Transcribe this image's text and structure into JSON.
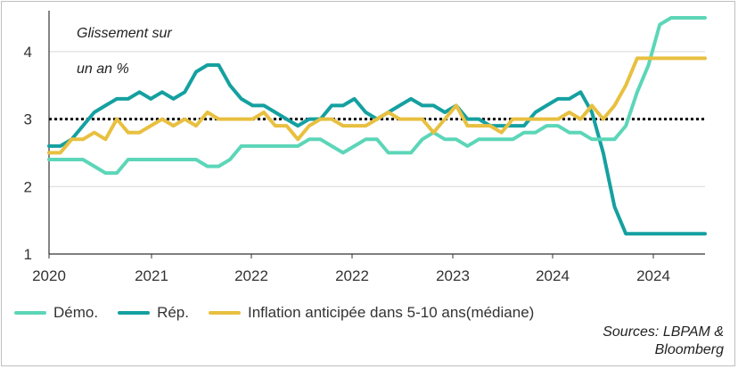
{
  "chart_data": {
    "type": "line",
    "ylabel": "Glissement sur un an %",
    "x_ticks": [
      "2020",
      "2021",
      "2022",
      "2022",
      "2023",
      "2024",
      "2024"
    ],
    "y_ticks": [
      "1",
      "2",
      "3",
      "4"
    ],
    "ylim": [
      1,
      4.5
    ],
    "xlim": [
      0,
      58
    ],
    "grid": "horizontal",
    "legend_position": "bottom",
    "reference_line": {
      "y": 3,
      "style": "dotted"
    },
    "source": "Sources: LBPAM & Bloomberg",
    "x": [
      0,
      1,
      2,
      3,
      4,
      5,
      6,
      7,
      8,
      9,
      10,
      11,
      12,
      13,
      14,
      15,
      16,
      17,
      18,
      19,
      20,
      21,
      22,
      23,
      24,
      25,
      26,
      27,
      28,
      29,
      30,
      31,
      32,
      33,
      34,
      35,
      36,
      37,
      38,
      39,
      40,
      41,
      42,
      43,
      44,
      45,
      46,
      47,
      48,
      49,
      50,
      51,
      52,
      53,
      54,
      55,
      56,
      57,
      58
    ],
    "series": [
      {
        "name": "Démo.",
        "color": "#5cd6b8",
        "values": [
          2.4,
          2.4,
          2.4,
          2.4,
          2.3,
          2.2,
          2.2,
          2.4,
          2.4,
          2.4,
          2.4,
          2.4,
          2.4,
          2.4,
          2.3,
          2.3,
          2.4,
          2.6,
          2.6,
          2.6,
          2.6,
          2.6,
          2.6,
          2.7,
          2.7,
          2.6,
          2.5,
          2.6,
          2.7,
          2.7,
          2.5,
          2.5,
          2.5,
          2.7,
          2.8,
          2.7,
          2.7,
          2.6,
          2.7,
          2.7,
          2.7,
          2.7,
          2.8,
          2.8,
          2.9,
          2.9,
          2.8,
          2.8,
          2.7,
          2.7,
          2.7,
          2.9,
          3.4,
          3.8,
          4.4,
          4.5,
          4.5,
          4.5,
          4.5
        ]
      },
      {
        "name": "Rép.",
        "color": "#15a0a0",
        "values": [
          2.6,
          2.6,
          2.7,
          2.9,
          3.1,
          3.2,
          3.3,
          3.3,
          3.4,
          3.3,
          3.4,
          3.3,
          3.4,
          3.7,
          3.8,
          3.8,
          3.5,
          3.3,
          3.2,
          3.2,
          3.1,
          3.0,
          2.9,
          3.0,
          3.0,
          3.2,
          3.2,
          3.3,
          3.1,
          3.0,
          3.1,
          3.2,
          3.3,
          3.2,
          3.2,
          3.1,
          3.2,
          3.0,
          3.0,
          2.9,
          2.9,
          2.9,
          2.9,
          3.1,
          3.2,
          3.3,
          3.3,
          3.4,
          3.1,
          2.5,
          1.7,
          1.3,
          1.3,
          1.3,
          1.3,
          1.3,
          1.3,
          1.3,
          1.3
        ]
      },
      {
        "name": "Inflation anticipée dans 5-10 ans(médiane)",
        "color": "#e8c040",
        "values": [
          2.5,
          2.5,
          2.7,
          2.7,
          2.8,
          2.7,
          3.0,
          2.8,
          2.8,
          2.9,
          3.0,
          2.9,
          3.0,
          2.9,
          3.1,
          3.0,
          3.0,
          3.0,
          3.0,
          3.1,
          2.9,
          2.9,
          2.7,
          2.9,
          3.0,
          3.0,
          2.9,
          2.9,
          2.9,
          3.0,
          3.1,
          3.0,
          3.0,
          3.0,
          2.8,
          3.0,
          3.2,
          2.9,
          2.9,
          2.9,
          2.8,
          3.0,
          3.0,
          3.0,
          3.0,
          3.0,
          3.1,
          3.0,
          3.2,
          3.0,
          3.2,
          3.5,
          3.9,
          3.9,
          3.9,
          3.9,
          3.9,
          3.9,
          3.9
        ]
      }
    ]
  }
}
